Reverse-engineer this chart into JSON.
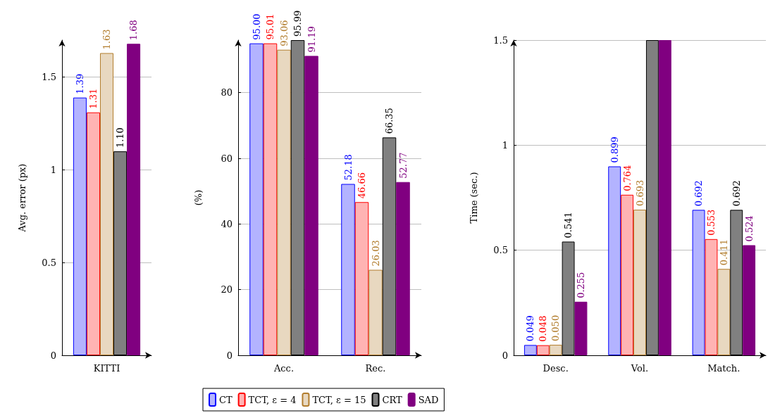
{
  "chart_data": [
    {
      "type": "bar",
      "categories": [
        "KITTI"
      ],
      "ylabel": "Avg. error (px)",
      "ylim": [
        0,
        1.7
      ],
      "yticks": [
        0,
        0.5,
        1,
        1.5
      ],
      "grid": "y",
      "series": [
        {
          "color": "#b3b3ff",
          "values": [
            1.39
          ],
          "value_labels": [
            "1.39"
          ]
        },
        {
          "color": "#ffb3b3",
          "values": [
            1.31
          ],
          "value_labels": [
            "1.31"
          ]
        },
        {
          "color": "#e8d8c0",
          "values": [
            1.63
          ],
          "value_labels": [
            "1.63"
          ]
        },
        {
          "color": "#808080",
          "values": [
            1.1
          ],
          "value_labels": [
            "1.10"
          ]
        },
        {
          "color": "#800080",
          "values": [
            1.68
          ],
          "value_labels": [
            "1.68"
          ]
        }
      ]
    },
    {
      "type": "bar",
      "categories": [
        "Acc.",
        "Rec."
      ],
      "ylabel": "(%)",
      "ylim": [
        0,
        96
      ],
      "yticks": [
        0,
        20,
        40,
        60,
        80
      ],
      "grid": "y",
      "legend": "bottom",
      "series": [
        {
          "name": "CT",
          "color": "#b3b3ff",
          "values": [
            95.0,
            52.18
          ],
          "value_labels": [
            "95.00",
            "52.18"
          ]
        },
        {
          "name": "TCT, ε = 4",
          "color": "#ffb3b3",
          "values": [
            95.01,
            46.66
          ],
          "value_labels": [
            "95.01",
            "46.66"
          ]
        },
        {
          "name": "TCT, ε = 15",
          "color": "#e8d8c0",
          "values": [
            93.06,
            26.03
          ],
          "value_labels": [
            "93.06",
            "26.03"
          ]
        },
        {
          "name": "CRT",
          "color": "#808080",
          "values": [
            95.99,
            66.35
          ],
          "value_labels": [
            "95.99",
            "66.35"
          ]
        },
        {
          "name": "SAD",
          "color": "#800080",
          "values": [
            91.19,
            52.77
          ],
          "value_labels": [
            "91.19",
            "52.77"
          ]
        }
      ]
    },
    {
      "type": "bar",
      "categories": [
        "Desc.",
        "Vol.",
        "Match."
      ],
      "ylabel": "Time (sec.)",
      "ylim": [
        0,
        1.5
      ],
      "yticks": [
        0,
        0.5,
        1,
        1.5
      ],
      "grid": "y",
      "series": [
        {
          "color": "#b3b3ff",
          "values": [
            0.049,
            0.899,
            0.692
          ],
          "value_labels": [
            "0.049",
            "0.899",
            "0.692"
          ]
        },
        {
          "color": "#ffb3b3",
          "values": [
            0.048,
            0.764,
            0.553
          ],
          "value_labels": [
            "0.048",
            "0.764",
            "0.553"
          ]
        },
        {
          "color": "#e8d8c0",
          "values": [
            0.05,
            0.693,
            0.411
          ],
          "value_labels": [
            "0.050",
            "0.693",
            "0.411"
          ]
        },
        {
          "color": "#808080",
          "values": [
            0.541,
            1.5,
            0.692
          ],
          "value_labels": [
            "0.541",
            null,
            "0.692"
          ]
        },
        {
          "color": "#800080",
          "values": [
            0.255,
            1.5,
            0.524
          ],
          "value_labels": [
            "0.255",
            null,
            "0.524"
          ]
        }
      ]
    }
  ]
}
